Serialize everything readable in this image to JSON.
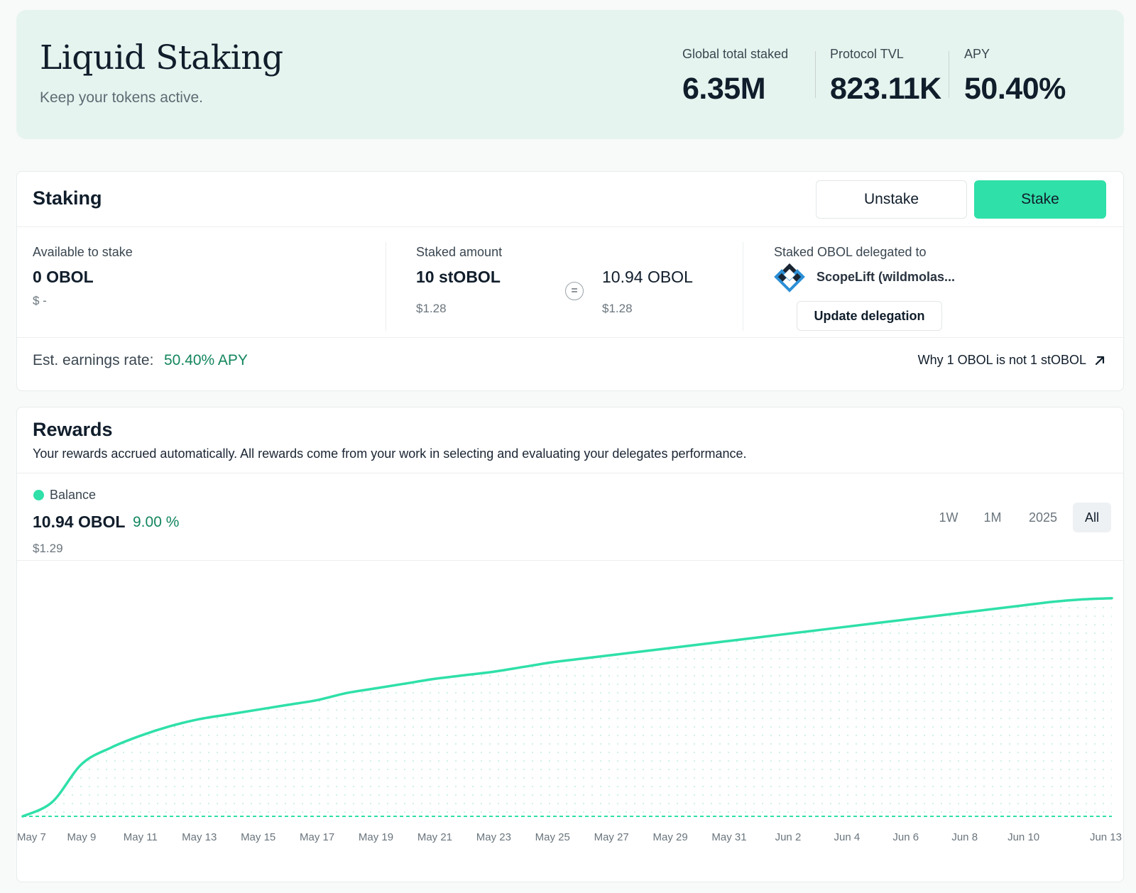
{
  "hero": {
    "title": "Liquid Staking",
    "subtitle": "Keep your tokens active.",
    "stats": [
      {
        "label": "Global total staked",
        "value": "6.35M"
      },
      {
        "label": "Protocol TVL",
        "value": "823.11K"
      },
      {
        "label": "APY",
        "value": "50.40%"
      }
    ]
  },
  "staking": {
    "title": "Staking",
    "unstake_label": "Unstake",
    "stake_label": "Stake",
    "available": {
      "label": "Available to stake",
      "value": "0 OBOL",
      "usd": "$ -"
    },
    "staked": {
      "label": "Staked amount",
      "value": "10 stOBOL",
      "usd": "$1.28",
      "equals": "=",
      "equiv_value": "10.94 OBOL",
      "equiv_usd": "$1.28"
    },
    "delegation": {
      "label": "Staked OBOL delegated to",
      "delegate": "ScopeLift (wildmolas...",
      "update_label": "Update delegation",
      "logo_icon": "scopelift-logo-icon"
    },
    "earnings": {
      "label": "Est. earnings rate:",
      "value": "50.40% APY"
    },
    "why_link": {
      "label": "Why 1 OBOL is not 1 stOBOL",
      "icon": "arrow-up-right-icon"
    }
  },
  "rewards": {
    "title": "Rewards",
    "description": "Your rewards accrued automatically. All rewards come from your work in selecting and evaluating your delegates performance.",
    "legend": "Balance",
    "balance": "10.94 OBOL",
    "change": "9.00 %",
    "usd": "$1.29",
    "ranges": [
      "1W",
      "1M",
      "2025",
      "All"
    ],
    "active_range": "All"
  },
  "colors": {
    "accent": "#2fe0a8",
    "positive_text": "#13865d",
    "hero_bg": "#e6f4ef"
  },
  "chart_data": {
    "type": "line",
    "title": "",
    "xlabel": "",
    "ylabel": "",
    "x_ticks": [
      "May 7",
      "May 9",
      "May 11",
      "May 13",
      "May 15",
      "May 17",
      "May 19",
      "May 21",
      "May 23",
      "May 25",
      "May 27",
      "May 29",
      "May 31",
      "Jun 2",
      "Jun 4",
      "Jun 6",
      "Jun 8",
      "Jun 10",
      "Jun 13"
    ],
    "series": [
      {
        "name": "Balance",
        "x": [
          "May 7",
          "May 8",
          "May 9",
          "May 10",
          "May 11",
          "May 12",
          "May 13",
          "May 14",
          "May 15",
          "May 16",
          "May 17",
          "May 18",
          "May 19",
          "May 20",
          "May 21",
          "May 22",
          "May 23",
          "May 24",
          "May 25",
          "May 26",
          "May 27",
          "May 28",
          "May 29",
          "May 30",
          "May 31",
          "Jun 1",
          "Jun 2",
          "Jun 3",
          "Jun 4",
          "Jun 5",
          "Jun 6",
          "Jun 7",
          "Jun 8",
          "Jun 9",
          "Jun 10",
          "Jun 11",
          "Jun 12",
          "Jun 13"
        ],
        "values": [
          0,
          0.06,
          0.22,
          0.29,
          0.34,
          0.38,
          0.41,
          0.43,
          0.45,
          0.47,
          0.49,
          0.52,
          0.54,
          0.56,
          0.58,
          0.595,
          0.61,
          0.63,
          0.65,
          0.665,
          0.68,
          0.695,
          0.71,
          0.725,
          0.74,
          0.755,
          0.77,
          0.785,
          0.8,
          0.815,
          0.83,
          0.845,
          0.86,
          0.875,
          0.89,
          0.905,
          0.915,
          0.92
        ]
      }
    ],
    "baseline": "dashed",
    "fill": "dotted",
    "grid": false,
    "legend": "top-left"
  }
}
